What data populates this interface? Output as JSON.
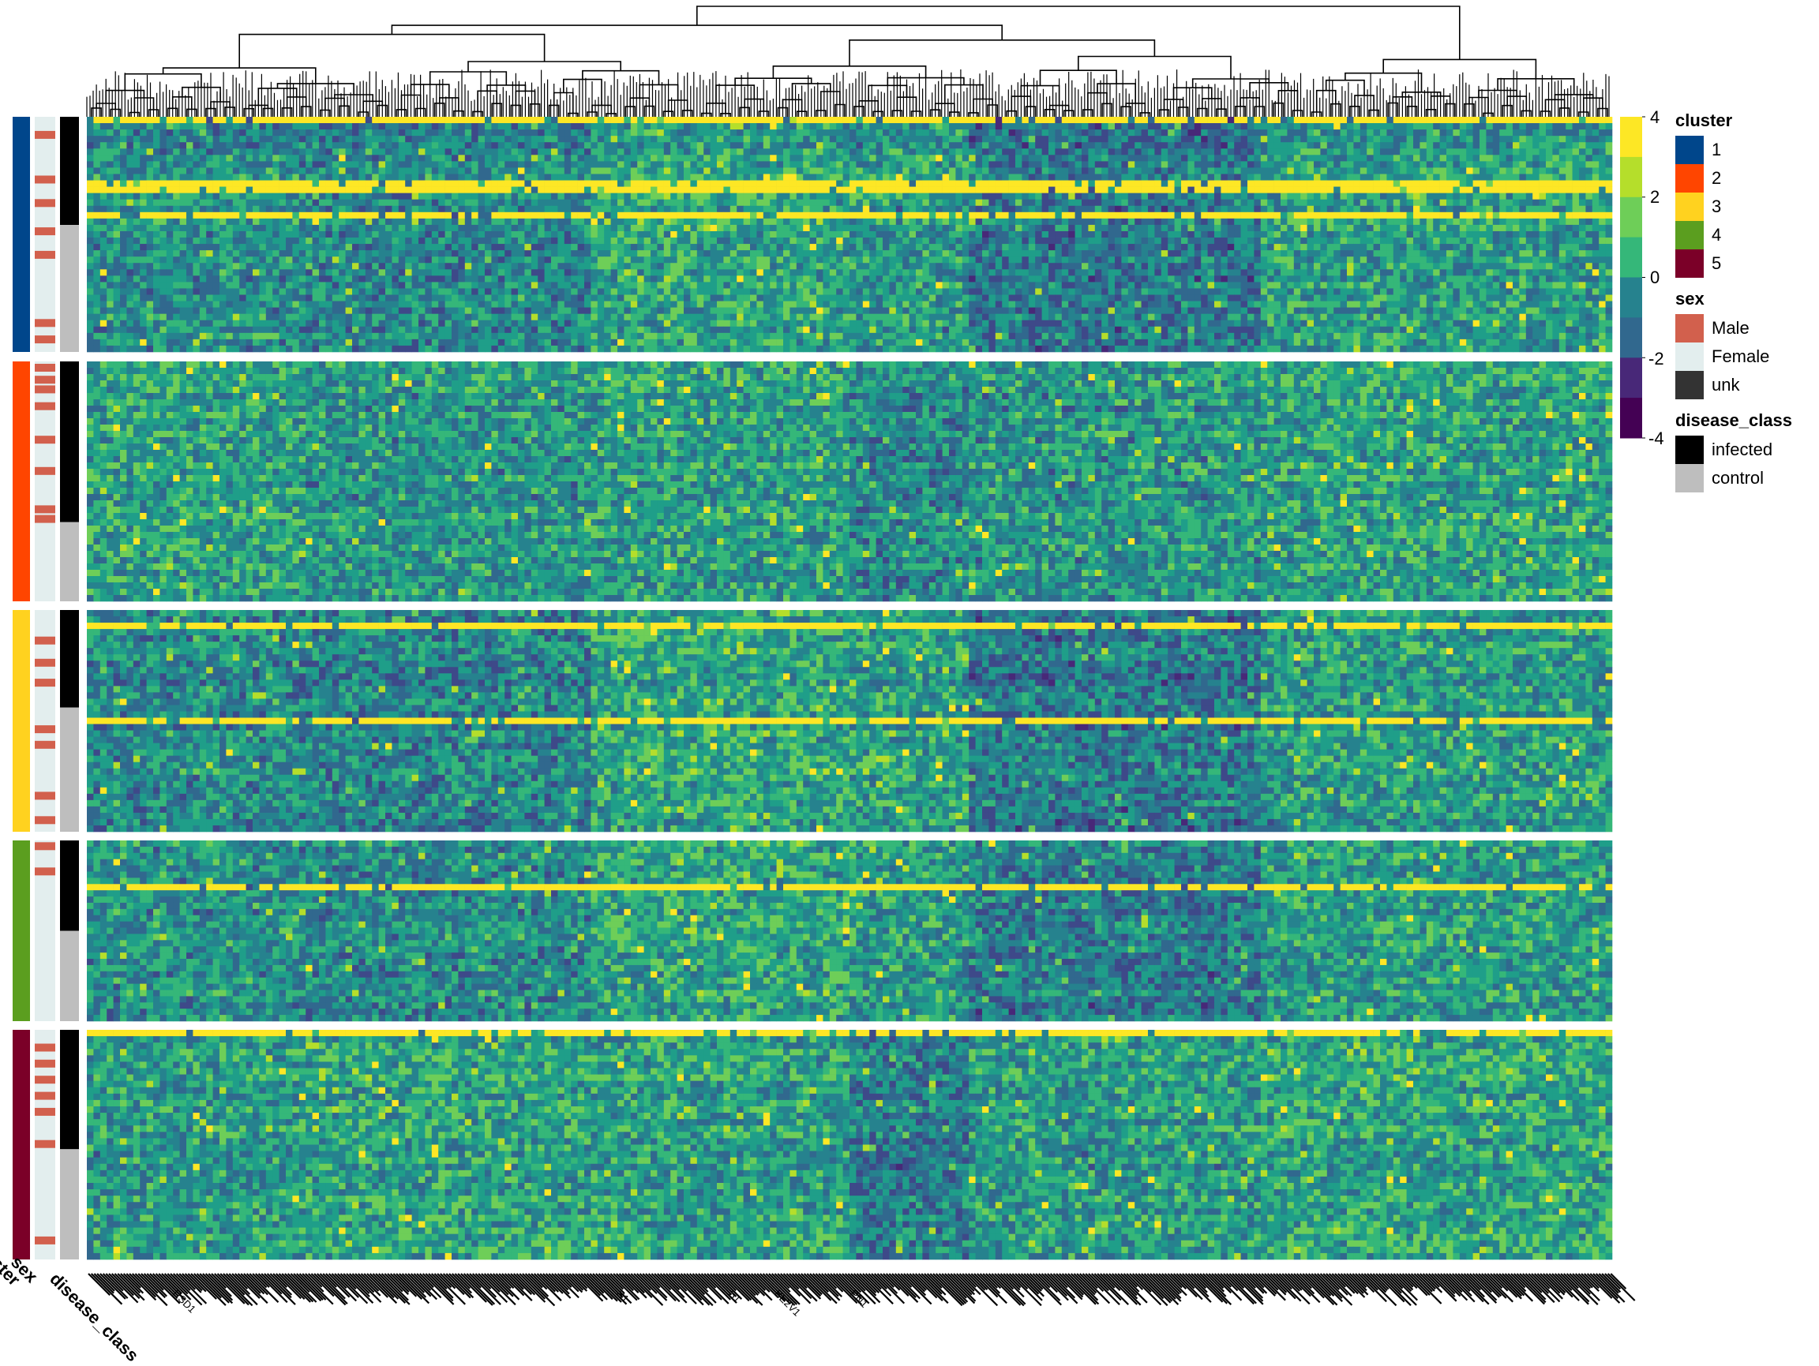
{
  "chart_data": {
    "type": "heatmap",
    "row_splits": [
      "1",
      "2",
      "3",
      "4",
      "5"
    ],
    "color_scale": {
      "min": -4,
      "max": 4,
      "breaks": [
        "4",
        "2",
        "0",
        "-2",
        "-4"
      ],
      "colors": [
        "#440154",
        "#482878",
        "#3e4989",
        "#31688e",
        "#26828e",
        "#1f9e89",
        "#35b779",
        "#6ece58",
        "#b5de2b",
        "#fde725"
      ]
    },
    "row_annotations": {
      "cluster": {
        "title": "cluster",
        "levels": [
          "1",
          "2",
          "3",
          "4",
          "5"
        ],
        "colors": [
          "#00468b",
          "#ff4500",
          "#ffd21f",
          "#5b9e1f",
          "#7b0028"
        ]
      },
      "sex": {
        "title": "sex",
        "levels": [
          "Male",
          "Female",
          "unk"
        ],
        "colors": [
          "#d2604d",
          "#e3eeee",
          "#333333"
        ]
      },
      "disease_class": {
        "title": "disease_class",
        "levels": [
          "infected",
          "control"
        ],
        "colors": [
          "#000000",
          "#bebebe"
        ]
      }
    },
    "annotation_axis_labels": [
      "cluster",
      "sex",
      "disease_class"
    ],
    "column_labels_visible": [
      "RSD1",
      "S1",
      "S1",
      "BE2V1",
      "PN1"
    ],
    "groups": [
      {
        "cluster": "1",
        "infected_fraction": 0.46,
        "male_rows": [
          0.06,
          0.25,
          0.35,
          0.47,
          0.57,
          0.86,
          0.93
        ]
      },
      {
        "cluster": "2",
        "infected_fraction": 0.67,
        "male_rows": [
          0.01,
          0.06,
          0.1,
          0.17,
          0.31,
          0.44,
          0.6,
          0.64
        ]
      },
      {
        "cluster": "3",
        "infected_fraction": 0.44,
        "male_rows": [
          0.12,
          0.22,
          0.31,
          0.52,
          0.59,
          0.82,
          0.93
        ]
      },
      {
        "cluster": "4",
        "infected_fraction": 0.5,
        "male_rows": [
          0.01,
          0.15
        ]
      },
      {
        "cluster": "5",
        "infected_fraction": 0.52,
        "male_rows": [
          0.06,
          0.13,
          0.2,
          0.27,
          0.34,
          0.48,
          0.9
        ]
      }
    ]
  },
  "legend": {
    "cluster_title": "cluster",
    "cluster_labels": [
      "1",
      "2",
      "3",
      "4",
      "5"
    ],
    "sex_title": "sex",
    "sex_labels": [
      "Male",
      "Female",
      "unk"
    ],
    "disease_title": "disease_class",
    "disease_labels": [
      "infected",
      "control"
    ]
  }
}
